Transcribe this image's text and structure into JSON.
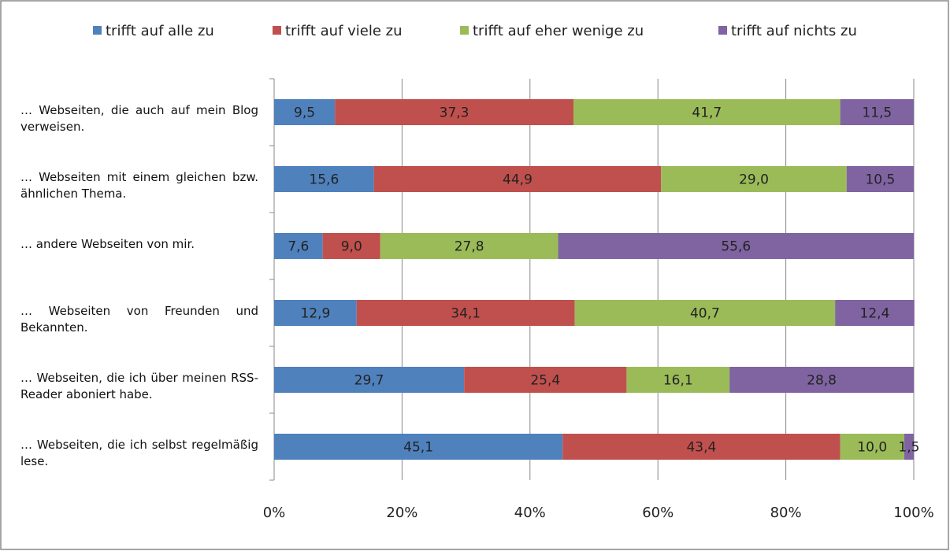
{
  "chart_data": {
    "type": "stacked-barh",
    "categories": [
      "… Webseiten, die auch auf mein Blog verweisen.",
      "… Webseiten mit einem gleichen bzw. ähnlichen Thema.",
      "… andere Webseiten von mir.",
      "… Webseiten von Freunden und Bekannten.",
      "… Webseiten, die ich über meinen RSS-Reader aboniert habe.",
      "… Webseiten, die ich selbst regelmäßig lese."
    ],
    "series": [
      {
        "name": "trifft auf alle zu",
        "color": "#4f81bd",
        "values": [
          9.5,
          15.6,
          7.6,
          12.9,
          29.7,
          45.1
        ],
        "value_labels": [
          "9,5",
          "15,6",
          "7,6",
          "12,9",
          "29,7",
          "45,1"
        ]
      },
      {
        "name": "trifft auf viele zu",
        "color": "#c0504d",
        "values": [
          37.3,
          44.9,
          9.0,
          34.1,
          25.4,
          43.4
        ],
        "value_labels": [
          "37,3",
          "44,9",
          "9,0",
          "34,1",
          "25,4",
          "43,4"
        ]
      },
      {
        "name": "trifft auf eher wenige zu",
        "color": "#9bbb59",
        "values": [
          41.7,
          29.0,
          27.8,
          40.7,
          16.1,
          10.0
        ],
        "value_labels": [
          "41,7",
          "29,0",
          "27,8",
          "40,7",
          "16,1",
          "10,0"
        ]
      },
      {
        "name": "trifft auf nichts zu",
        "color": "#8064a2",
        "values": [
          11.5,
          10.5,
          55.6,
          12.4,
          28.8,
          1.5
        ],
        "value_labels": [
          "11,5",
          "10,5",
          "55,6",
          "12,4",
          "28,8",
          "1,5"
        ]
      }
    ],
    "xlim": [
      0,
      100
    ],
    "xticks": [
      {
        "value": 0,
        "label": "0%"
      },
      {
        "value": 20,
        "label": "20%"
      },
      {
        "value": 40,
        "label": "40%"
      },
      {
        "value": 60,
        "label": "60%"
      },
      {
        "value": 80,
        "label": "80%"
      },
      {
        "value": 100,
        "label": "100%"
      }
    ],
    "grid": true,
    "legend": "top"
  }
}
